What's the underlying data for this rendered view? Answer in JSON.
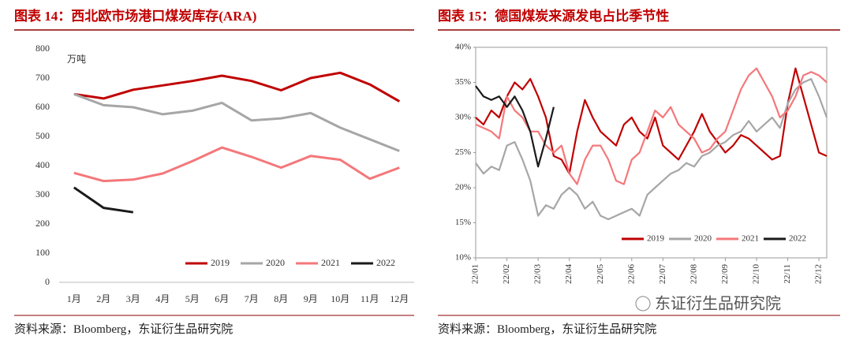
{
  "chart_data": [
    {
      "type": "line",
      "title": "图表 14：西北欧市场港口煤炭库存(ARA)",
      "ylabel": "万吨",
      "source": "资料来源：Bloomberg，东证衍生品研究院",
      "categories": [
        "1月",
        "2月",
        "3月",
        "4月",
        "5月",
        "6月",
        "7月",
        "8月",
        "9月",
        "10月",
        "11月",
        "12月"
      ],
      "ylim": [
        0,
        800
      ],
      "yticks": [
        0,
        100,
        200,
        300,
        400,
        500,
        600,
        700,
        800
      ],
      "legend": "bottom",
      "series": [
        {
          "name": "2019",
          "color": "#c00000",
          "values": [
            645,
            630,
            660,
            675,
            690,
            708,
            690,
            658,
            700,
            718,
            678,
            620
          ]
        },
        {
          "name": "2020",
          "color": "#a6a6a6",
          "values": [
            645,
            607,
            600,
            576,
            588,
            615,
            555,
            562,
            580,
            530,
            490,
            450
          ]
        },
        {
          "name": "2021",
          "color": "#f4777a",
          "values": [
            375,
            347,
            352,
            373,
            415,
            462,
            430,
            393,
            433,
            420,
            355,
            393
          ]
        },
        {
          "name": "2022",
          "color": "#1a1a1a",
          "values": [
            325,
            255,
            240,
            null,
            null,
            null,
            null,
            null,
            null,
            null,
            null,
            null
          ]
        }
      ]
    },
    {
      "type": "line",
      "title": "图表 15：德国煤炭来源发电占比季节性",
      "source": "资料来源：Bloomberg，东证衍生品研究院",
      "watermark": "东证衍生品研究院",
      "x": [
        0,
        0.25,
        0.5,
        0.75,
        1,
        1.25,
        1.5,
        1.75,
        2,
        2.25,
        2.5,
        2.75,
        3,
        3.25,
        3.5,
        3.75,
        4,
        4.25,
        4.5,
        4.75,
        5,
        5.25,
        5.5,
        5.75,
        6,
        6.25,
        6.5,
        6.75,
        7,
        7.25,
        7.5,
        7.75,
        8,
        8.25,
        8.5,
        8.75,
        9,
        9.25,
        9.5,
        9.75,
        10,
        10.25,
        10.5,
        10.75,
        11,
        11.25
      ],
      "xlim": [
        0,
        11.25
      ],
      "xticks": [
        {
          "value": 0,
          "label": "22/01"
        },
        {
          "value": 1,
          "label": "22/02"
        },
        {
          "value": 2,
          "label": "22/03"
        },
        {
          "value": 3,
          "label": "22/04"
        },
        {
          "value": 4,
          "label": "22/05"
        },
        {
          "value": 5,
          "label": "22/06"
        },
        {
          "value": 6,
          "label": "22/07"
        },
        {
          "value": 7,
          "label": "22/08"
        },
        {
          "value": 8,
          "label": "22/09"
        },
        {
          "value": 9,
          "label": "22/10"
        },
        {
          "value": 10,
          "label": "22/11"
        },
        {
          "value": 11,
          "label": "22/12"
        }
      ],
      "ylim": [
        10,
        40
      ],
      "yticks": [
        {
          "value": 10,
          "label": "10%"
        },
        {
          "value": 15,
          "label": "15%"
        },
        {
          "value": 20,
          "label": "20%"
        },
        {
          "value": 25,
          "label": "25%"
        },
        {
          "value": 30,
          "label": "30%"
        },
        {
          "value": 35,
          "label": "35%"
        },
        {
          "value": 40,
          "label": "40%"
        }
      ],
      "legend": "bottom",
      "series": [
        {
          "name": "2019",
          "color": "#c00000",
          "values": [
            30,
            29,
            31,
            30,
            33,
            35,
            34,
            35.5,
            33,
            30,
            24.5,
            24,
            22,
            28,
            32.5,
            30,
            28,
            27,
            26,
            29,
            30,
            28,
            27,
            30,
            26,
            25,
            24,
            26,
            28,
            30.5,
            28,
            26.5,
            25,
            26,
            27.5,
            27,
            26,
            25,
            24,
            24.5,
            32,
            37,
            33,
            29,
            25,
            24.5
          ]
        },
        {
          "name": "2020",
          "color": "#a6a6a6",
          "values": [
            23.5,
            22,
            23,
            22.5,
            26,
            26.5,
            24,
            21,
            16,
            17.5,
            17,
            19,
            20,
            19,
            17,
            18,
            16,
            15.5,
            16,
            16.5,
            17,
            16,
            19,
            20,
            21,
            22,
            22.5,
            23.5,
            23,
            24.5,
            25,
            26,
            26.5,
            27.5,
            28,
            29.5,
            28,
            29,
            30,
            28.5,
            32,
            34,
            35,
            35.5,
            33,
            30
          ]
        },
        {
          "name": "2021",
          "color": "#f4777a",
          "values": [
            29,
            28.5,
            28,
            27,
            33,
            31,
            30,
            28,
            28,
            26,
            25,
            26,
            22,
            20.5,
            24,
            26,
            26,
            24,
            21,
            20.5,
            24,
            25,
            28,
            31,
            30,
            31.5,
            29,
            28,
            27,
            25,
            25.5,
            27,
            28,
            31,
            34,
            36,
            37,
            35,
            33,
            30,
            31,
            33,
            36,
            36.5,
            36,
            35
          ]
        },
        {
          "name": "2022",
          "color": "#1a1a1a",
          "values": [
            34.5,
            33,
            32.5,
            33,
            31.5,
            33,
            31,
            28,
            23,
            27,
            31.5,
            null,
            null,
            null,
            null,
            null,
            null,
            null,
            null,
            null,
            null,
            null,
            null,
            null,
            null,
            null,
            null,
            null,
            null,
            null,
            null,
            null,
            null,
            null,
            null,
            null,
            null,
            null,
            null,
            null,
            null,
            null,
            null,
            null,
            null,
            null
          ]
        }
      ]
    }
  ]
}
